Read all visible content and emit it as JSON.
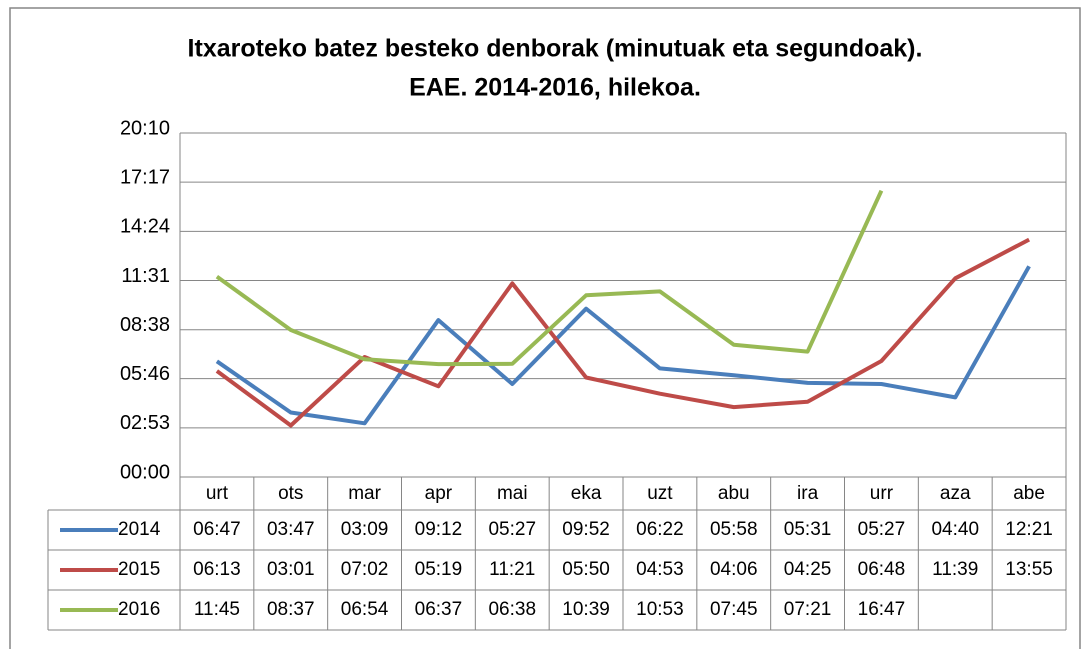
{
  "chart_data": {
    "type": "line",
    "title": "Itxaroteko batez besteko denborak (minutuak eta segundoak).",
    "subtitle": "EAE. 2014-2016, hilekoa.",
    "categories": [
      "urt",
      "ots",
      "mar",
      "apr",
      "mai",
      "eka",
      "uzt",
      "abu",
      "ira",
      "urr",
      "aza",
      "abe"
    ],
    "series": [
      {
        "name": "2014",
        "color": "#4a7ebb",
        "values": [
          407,
          227,
          189,
          552,
          327,
          592,
          382,
          358,
          331,
          327,
          280,
          741
        ],
        "value_labels": [
          "06:47",
          "03:47",
          "03:09",
          "09:12",
          "05:27",
          "09:52",
          "06:22",
          "05:58",
          "05:31",
          "05:27",
          "04:40",
          "12:21"
        ]
      },
      {
        "name": "2015",
        "color": "#be4b48",
        "values": [
          373,
          181,
          422,
          319,
          681,
          350,
          293,
          246,
          265,
          408,
          699,
          835
        ],
        "value_labels": [
          "06:13",
          "03:01",
          "07:02",
          "05:19",
          "11:21",
          "05:50",
          "04:53",
          "04:06",
          "04:25",
          "06:48",
          "11:39",
          "13:55"
        ]
      },
      {
        "name": "2016",
        "color": "#98b954",
        "values": [
          705,
          517,
          414,
          397,
          398,
          639,
          653,
          465,
          441,
          1007,
          null,
          null
        ],
        "value_labels": [
          "11:45",
          "08:37",
          "06:54",
          "06:37",
          "06:38",
          "10:39",
          "10:53",
          "07:45",
          "07:21",
          "16:47",
          null,
          null
        ]
      }
    ],
    "ylim": [
      0,
      1210
    ],
    "yticks": [
      {
        "value": 0,
        "label": "00:00"
      },
      {
        "value": 173,
        "label": "02:53"
      },
      {
        "value": 346,
        "label": "05:46"
      },
      {
        "value": 518,
        "label": "08:38"
      },
      {
        "value": 691,
        "label": "11:31"
      },
      {
        "value": 864,
        "label": "14:24"
      },
      {
        "value": 1037,
        "label": "17:17"
      },
      {
        "value": 1210,
        "label": "20:10"
      }
    ],
    "grid": true
  }
}
